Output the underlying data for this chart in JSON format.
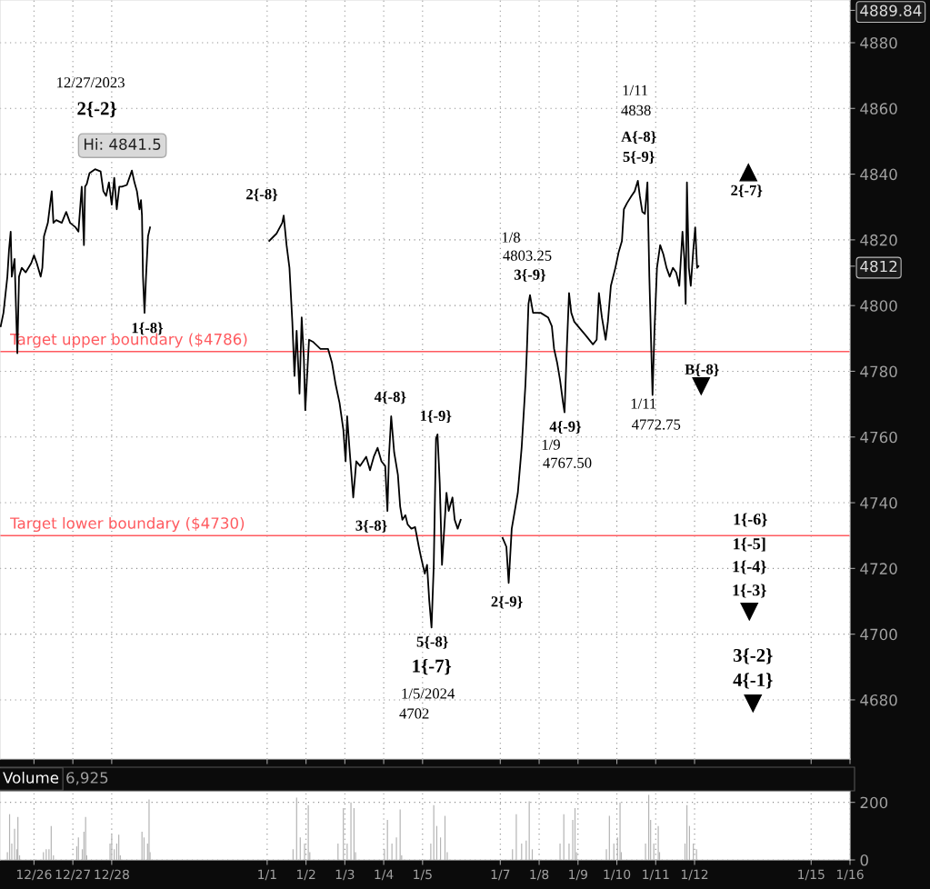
{
  "chart_data": [
    {
      "type": "line",
      "color": "#000000",
      "line_style": "solid",
      "marker": "none",
      "grid": true,
      "tick_labels": "y",
      "x": [
        "2023-12-25T03:26",
        "2023-12-25T05:09",
        "2023-12-25T07:33",
        "2023-12-25T08:34",
        "2023-12-25T09:36",
        "2023-12-25T10:17",
        "2023-12-25T12:00",
        "2023-12-25T13:43",
        "2023-12-25T14:45",
        "2023-12-25T16:27",
        "2023-12-25T18:51",
        "2023-12-25T22:17",
        "2023-12-26T00:00",
        "2023-12-26T01:43",
        "2023-12-26T04:07",
        "2023-12-26T05:09",
        "2023-12-26T06:10",
        "2023-12-26T08:34",
        "2023-12-26T10:58",
        "2023-12-26T12:00",
        "2023-12-26T13:43",
        "2023-12-26T17:09",
        "2023-12-26T19:53",
        "2023-12-26T22:17",
        "2023-12-27T01:43",
        "2023-12-27T03:26",
        "2023-12-27T05:29",
        "2023-12-27T06:51",
        "2023-12-27T07:33",
        "2023-12-27T08:34",
        "2023-12-27T10:17",
        "2023-12-27T13:43",
        "2023-12-27T17:09",
        "2023-12-27T18:51",
        "2023-12-27T20:34",
        "2023-12-27T22:17",
        "2023-12-28T00:00",
        "2023-12-28T01:34",
        "2023-12-28T03:07",
        "2023-12-28T04:41",
        "2023-12-28T06:14",
        "2023-12-28T09:21",
        "2023-12-28T12:28",
        "2023-12-28T14:02",
        "2023-12-28T15:35",
        "2023-12-28T17:09",
        "2023-12-28T18:05",
        "2023-12-28T18:42",
        "2023-12-28T19:19",
        "2023-12-28T20:16",
        "2023-12-28T21:12",
        "2023-12-28T22:26",
        "2023-12-28T23:41",
        "2023-12-30T00:00",
        "2024-01-01T01:20",
        "2024-01-01T05:47",
        "2024-01-01T09:20",
        "2024-01-01T10:13",
        "2024-01-01T12:00",
        "2024-01-01T13:47",
        "2024-01-01T15:33",
        "2024-01-01T16:53",
        "2024-01-01T18:13",
        "2024-01-01T20:00",
        "2024-01-01T21:20",
        "2024-01-01T22:40",
        "2024-01-01T23:33",
        "2024-01-02T01:53",
        "2024-01-02T04:14",
        "2024-01-02T08:57",
        "2024-01-02T13:39",
        "2024-01-02T16:00",
        "2024-01-02T18:21",
        "2024-01-02T20:43",
        "2024-01-02T23:04",
        "2024-01-03T00:28",
        "2024-01-03T01:25",
        "2024-01-03T02:49",
        "2024-01-03T05:11",
        "2024-01-03T07:04",
        "2024-01-03T09:25",
        "2024-01-03T13:11",
        "2024-01-03T15:32",
        "2024-01-03T17:53",
        "2024-01-03T20:14",
        "2024-01-03T22:36",
        "2024-01-04T00:55",
        "2024-01-04T02:18",
        "2024-01-04T03:14",
        "2024-01-04T04:37",
        "2024-01-04T06:28",
        "2024-01-04T08:46",
        "2024-01-04T10:09",
        "2024-01-04T11:32",
        "2024-01-04T13:23",
        "2024-01-04T14:46",
        "2024-01-04T17:05",
        "2024-01-04T19:23",
        "2024-01-04T21:41",
        "2024-01-04T23:05",
        "2024-01-05T01:23",
        "2024-01-05T02:46",
        "2024-01-05T04:09",
        "2024-01-05T05:32",
        "2024-01-05T06:55",
        "2024-01-05T08:18",
        "2024-01-05T09:14",
        "2024-01-05T10:37",
        "2024-01-05T12:00",
        "2024-01-05T13:23",
        "2024-01-05T14:46",
        "2024-01-05T16:09",
        "2024-01-05T18:28",
        "2024-01-05T19:51",
        "2024-01-05T21:41",
        "2024-01-05T23:32",
        "2024-01-06T00:00",
        "2024-01-07T01:25",
        "2024-01-07T03:46",
        "2024-01-07T05:11",
        "2024-01-07T07:04",
        "2024-01-07T08:57",
        "2024-01-07T10:50",
        "2024-01-07T13:11",
        "2024-01-07T15:32",
        "2024-01-07T16:28",
        "2024-01-07T17:25",
        "2024-01-07T18:21",
        "2024-01-07T20:14",
        "2024-01-08T00:55",
        "2024-01-08T05:32",
        "2024-01-08T07:51",
        "2024-01-08T09:14",
        "2024-01-08T11:05",
        "2024-01-08T12:55",
        "2024-01-08T14:46",
        "2024-01-08T15:41",
        "2024-01-08T17:05",
        "2024-01-08T18:28",
        "2024-01-08T19:51",
        "2024-01-08T21:41",
        "2024-01-09T00:00",
        "2024-01-09T04:37",
        "2024-01-09T09:14",
        "2024-01-09T11:32",
        "2024-01-09T12:55",
        "2024-01-09T14:46",
        "2024-01-09T17:05",
        "2024-01-09T18:28",
        "2024-01-09T20:18",
        "2024-01-09T23:05",
        "2024-01-10T01:11",
        "2024-01-10T03:09",
        "2024-01-10T04:20",
        "2024-01-10T06:18",
        "2024-01-10T09:03",
        "2024-01-10T11:01",
        "2024-01-10T12:59",
        "2024-01-10T14:10",
        "2024-01-10T15:44",
        "2024-01-10T17:19",
        "2024-01-10T18:53",
        "2024-01-10T20:04",
        "2024-01-10T21:15",
        "2024-01-10T22:02",
        "2024-01-10T23:13",
        "2024-01-11T00:47",
        "2024-01-11T02:45",
        "2024-01-11T04:43",
        "2024-01-11T06:41",
        "2024-01-11T08:39",
        "2024-01-11T10:37",
        "2024-01-11T12:36",
        "2024-01-11T14:34",
        "2024-01-11T16:32",
        "2024-01-11T17:42",
        "2024-01-11T18:30",
        "2024-01-11T19:17",
        "2024-01-11T20:28",
        "2024-01-11T21:39",
        "2024-01-11T23:13",
        "2024-01-12T00:24",
        "2024-01-12T01:34",
        "2024-01-12T02:22"
      ],
      "values": [
        4793.7,
        4797.8,
        4808.8,
        4817.0,
        4822.5,
        4808.8,
        4814.2,
        4785.5,
        4808.8,
        4811.5,
        4810.1,
        4812.9,
        4815.3,
        4812.9,
        4808.8,
        4811.5,
        4821.1,
        4825.2,
        4834.8,
        4825.2,
        4826.0,
        4825.2,
        4828.5,
        4825.2,
        4823.8,
        4822.5,
        4836.2,
        4818.4,
        4836.2,
        4837.0,
        4840.3,
        4841.5,
        4840.8,
        4834.8,
        4833.4,
        4837.5,
        4830.7,
        4838.9,
        4829.3,
        4836.2,
        4836.2,
        4836.7,
        4841.1,
        4837.5,
        4834.8,
        4829.3,
        4832.1,
        4827.4,
        4808.8,
        4797.8,
        4808.8,
        4821.1,
        4823.8,
        null,
        4819.7,
        4821.9,
        4825.2,
        4827.4,
        4818.4,
        4811.5,
        4795.1,
        4778.6,
        4792.3,
        4773.2,
        4796.4,
        4784.1,
        4768.2,
        4789.6,
        4789.0,
        4786.8,
        4786.8,
        4782.7,
        4775.9,
        4770.4,
        4762.2,
        4752.6,
        4766.3,
        4756.7,
        4741.6,
        4752.6,
        4751.2,
        4754.0,
        4749.9,
        4754.0,
        4756.7,
        4752.6,
        4751.2,
        4737.5,
        4754.0,
        4766.3,
        4755.3,
        4748.5,
        4738.9,
        4734.8,
        4736.2,
        4733.4,
        4732.1,
        4732.6,
        4726.6,
        4723.3,
        4718.4,
        4721.1,
        4710.1,
        4702,
        4721.1,
        4759.5,
        4760.8,
        4745.8,
        4721.1,
        4732.1,
        4743.0,
        4737.5,
        4741.6,
        4734.8,
        4732.1,
        4734.8,
        null,
        4729.3,
        4726.6,
        4715.6,
        4732.1,
        4737.5,
        4743.0,
        4756.7,
        4775.9,
        4786.8,
        4800.5,
        4803.2,
        4797.8,
        4797.8,
        4796.4,
        4793.7,
        4786.8,
        4782.7,
        4777.3,
        4770.4,
        4767.5,
        4786.8,
        4803.8,
        4797.8,
        4795.1,
        4793.7,
        4791.0,
        4788.2,
        4789.6,
        4803.8,
        4796.4,
        4789.6,
        4795.1,
        4806.0,
        4811.5,
        4816.4,
        4819.7,
        4829.3,
        4831.2,
        4833.4,
        4834.8,
        4838,
        4833.4,
        4828.5,
        4827.9,
        4837.5,
        4808.8,
        4786.8,
        4772.8,
        4792.3,
        4811.5,
        4818.4,
        4815.6,
        4811.5,
        4808.8,
        4811.5,
        4810.1,
        4806.0,
        4822.5,
        4814.2,
        4800.5,
        4837.5,
        4811.5,
        4806.0,
        4817.0,
        4823.8,
        4811.5,
        4812
      ],
      "xlim": [
        "2023-12-25T03:00",
        "2024-01-16"
      ],
      "xticks": [
        {
          "value": "2023-12-26",
          "label": null
        },
        {
          "value": "2023-12-27",
          "label": null
        },
        {
          "value": "2023-12-28",
          "label": null
        },
        {
          "value": "2024-01-01",
          "label": null
        },
        {
          "value": "2024-01-02",
          "label": null
        },
        {
          "value": "2024-01-03",
          "label": null
        },
        {
          "value": "2024-01-04",
          "label": null
        },
        {
          "value": "2024-01-05",
          "label": null
        },
        {
          "value": "2024-01-07",
          "label": null
        },
        {
          "value": "2024-01-08",
          "label": null
        },
        {
          "value": "2024-01-09",
          "label": null
        },
        {
          "value": "2024-01-10",
          "label": null
        },
        {
          "value": "2024-01-11",
          "label": null
        },
        {
          "value": "2024-01-12",
          "label": null
        },
        {
          "value": "2024-01-15",
          "label": null
        },
        {
          "value": "2024-01-16",
          "label": null
        }
      ],
      "ylim": [
        4662,
        4893
      ],
      "yticks": [
        4680,
        4700,
        4720,
        4740,
        4760,
        4780,
        4800,
        4820,
        4840,
        4860,
        4880,
        {
          "value": 4889.84,
          "label": "4889.84"
        },
        {
          "value": 4812,
          "label": "4812"
        }
      ],
      "ref_lines": [
        {
          "axis": "y",
          "value": 4786,
          "label": "Target upper boundary ($4786)",
          "color": "#ff5a5f"
        },
        {
          "axis": "y",
          "value": 4730,
          "label": "Target lower boundary ($4730)",
          "color": "#ff5a5f"
        }
      ],
      "annotations": [
        "12/27/2023",
        "2{-2}",
        "2{-8}",
        "1{-8}",
        "4{-8}",
        "1{-9}",
        "3{-8}",
        "5{-8}",
        "1{-7}",
        "1/5/2024",
        "4702",
        "2{-9}",
        "1/8",
        "4803.25",
        "3{-9}",
        "4{-9}",
        "1/9",
        "4767.50",
        "1/11",
        "4838",
        "A{-8}",
        "5{-9}",
        "1/11",
        "4772.75",
        "2{-7}",
        "B{-8}",
        "1{-6}",
        "1{-5]",
        "1{-4}",
        "1{-3}",
        "3{-2}",
        "4{-1}",
        "Hi: 4841.5"
      ]
    },
    {
      "type": "bar",
      "color": "#b4b4b4",
      "grid": true,
      "title": "Volume",
      "annotations": [
        "6,925"
      ],
      "x": [
        "2023-12-25T07:33",
        "2023-12-25T08:55",
        "2023-12-25T10:17",
        "2023-12-25T12:00",
        "2023-12-25T13:22",
        "2023-12-25T14:03",
        "2023-12-25T15:05",
        "2023-12-26T05:50",
        "2023-12-26T07:33",
        "2023-12-26T09:15",
        "2023-12-26T10:38",
        "2023-12-26T12:00",
        "2023-12-27T02:24",
        "2023-12-27T03:26",
        "2023-12-27T05:50",
        "2023-12-27T06:51",
        "2023-12-27T07:53",
        "2023-12-27T08:34",
        "2023-12-27T22:58",
        "2023-12-28T00:00",
        "2023-12-28T01:34",
        "2023-12-28T03:07",
        "2023-12-28T04:22",
        "2023-12-28T05:18",
        "2023-12-28T18:42",
        "2023-12-28T19:57",
        "2023-12-28T22:08",
        "2023-12-28T23:04",
        "2023-12-28T23:41",
        "2024-01-01T16:00",
        "2024-01-01T18:13",
        "2024-01-01T20:27",
        "2024-01-01T23:07",
        "2024-01-02T01:25",
        "2024-01-02T02:21",
        "2024-01-02T19:46",
        "2024-01-02T23:04",
        "2024-01-03T01:25",
        "2024-01-03T03:46",
        "2024-01-03T05:39",
        "2024-01-03T06:35",
        "2024-01-04T00:28",
        "2024-01-04T02:18",
        "2024-01-04T05:05",
        "2024-01-04T07:51",
        "2024-01-04T10:09",
        "2024-01-04T11:05",
        "2024-01-05T05:05",
        "2024-01-05T06:55",
        "2024-01-05T08:46",
        "2024-01-05T11:05",
        "2024-01-05T13:51",
        "2024-01-05T15:14",
        "2024-01-07T07:32",
        "2024-01-07T09:53",
        "2024-01-07T13:11",
        "2024-01-07T16:00",
        "2024-01-07T17:53",
        "2024-01-07T19:46",
        "2024-01-08T12:55",
        "2024-01-08T15:14",
        "2024-01-08T18:28",
        "2024-01-08T20:46",
        "2024-01-08T22:09",
        "2024-01-08T23:05",
        "2024-01-09T17:32",
        "2024-01-09T19:23",
        "2024-01-09T22:09",
        "2024-01-10T00:24",
        "2024-01-10T01:58",
        "2024-01-10T02:45",
        "2024-01-10T17:42",
        "2024-01-10T19:41",
        "2024-01-10T20:51",
        "2024-01-10T22:49",
        "2024-01-11T01:34",
        "2024-01-11T02:22",
        "2024-01-11T18:06",
        "2024-01-11T19:17",
        "2024-01-11T20:51",
        "2024-01-11T23:13",
        "2024-01-12T01:12"
      ],
      "values": [
        27,
        159,
        57,
        108,
        37,
        149,
        16,
        27,
        37,
        37,
        118,
        16,
        47,
        78,
        37,
        98,
        149,
        16,
        57,
        88,
        37,
        57,
        88,
        16,
        98,
        78,
        57,
        210,
        27,
        37,
        216,
        78,
        57,
        190,
        27,
        57,
        180,
        57,
        200,
        180,
        27,
        37,
        139,
        57,
        78,
        175,
        16,
        57,
        190,
        118,
        78,
        153,
        27,
        37,
        159,
        57,
        67,
        204,
        37,
        57,
        159,
        57,
        139,
        180,
        27,
        37,
        153,
        57,
        78,
        200,
        27,
        57,
        226,
        139,
        57,
        118,
        27,
        57,
        190,
        118,
        57,
        37
      ],
      "xlim": [
        "2023-12-25T03:00",
        "2024-01-16"
      ],
      "xticks": [
        {
          "value": "2023-12-26",
          "label": "12/26"
        },
        {
          "value": "2023-12-27",
          "label": "12/27"
        },
        {
          "value": "2023-12-28",
          "label": "12/28"
        },
        {
          "value": "2024-01-01",
          "label": "1/1"
        },
        {
          "value": "2024-01-02",
          "label": "1/2"
        },
        {
          "value": "2024-01-03",
          "label": "1/3"
        },
        {
          "value": "2024-01-04",
          "label": "1/4"
        },
        {
          "value": "2024-01-05",
          "label": "1/5"
        },
        {
          "value": "2024-01-07",
          "label": "1/7"
        },
        {
          "value": "2024-01-08",
          "label": "1/8"
        },
        {
          "value": "2024-01-09",
          "label": "1/9"
        },
        {
          "value": "2024-01-10",
          "label": "1/10"
        },
        {
          "value": "2024-01-11",
          "label": "1/11"
        },
        {
          "value": "2024-01-12",
          "label": "1/12"
        },
        {
          "value": "2024-01-15",
          "label": "1/15"
        },
        {
          "value": "2024-01-16",
          "label": "1/16"
        }
      ],
      "ylim": [
        0,
        240
      ],
      "yticks": [
        0,
        200
      ]
    }
  ]
}
